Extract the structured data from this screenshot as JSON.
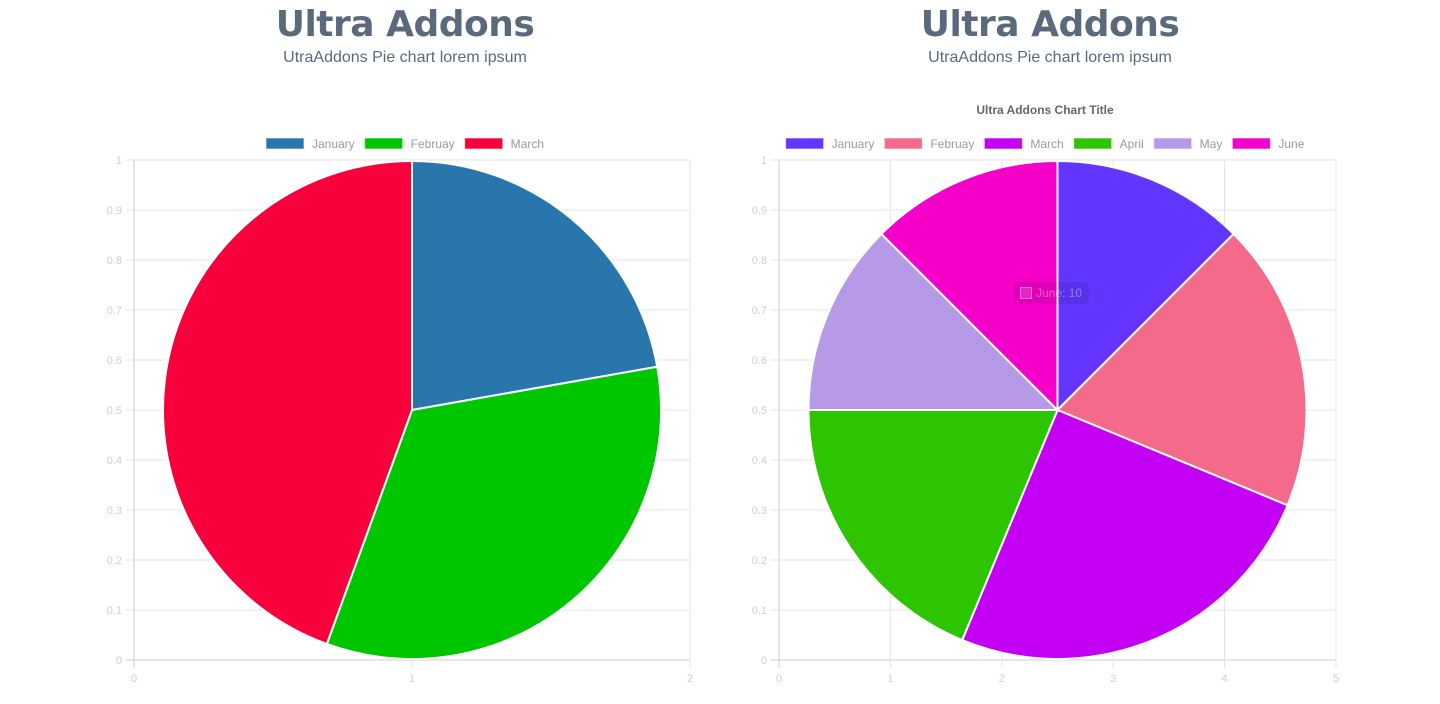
{
  "header_left": {
    "title": "Ultra Addons",
    "subtitle": "UtraAddons Pie chart lorem ipsum"
  },
  "header_right": {
    "title": "Ultra Addons",
    "subtitle": "UtraAddons Pie chart lorem ipsum"
  },
  "tooltip": {
    "label": "June: 10"
  },
  "chart_data": [
    {
      "type": "pie",
      "title": "",
      "categories": [
        "January",
        "Februay",
        "March"
      ],
      "values": [
        10,
        15,
        20
      ],
      "colors": [
        "#2876ab",
        "#00c600",
        "#f7003c"
      ],
      "legend_position": "top",
      "grid": true,
      "x_ticks": [
        "0",
        "1",
        "2"
      ],
      "y_ticks": [
        "0",
        "0.1",
        "0.2",
        "0.3",
        "0.4",
        "0.5",
        "0.6",
        "0.7",
        "0.8",
        "0.9",
        "1"
      ],
      "xlim": [
        0,
        2
      ],
      "ylim": [
        0,
        1
      ]
    },
    {
      "type": "pie",
      "title": "Ultra Addons Chart Title",
      "categories": [
        "January",
        "Februay",
        "March",
        "April",
        "May",
        "June"
      ],
      "values": [
        10,
        15,
        20,
        15,
        10,
        10
      ],
      "colors": [
        "#6236ff",
        "#f46a8a",
        "#c400f4",
        "#2cc500",
        "#b69ae8",
        "#f400c8"
      ],
      "legend_position": "top",
      "grid": true,
      "x_ticks": [
        "0",
        "1",
        "2",
        "3",
        "4",
        "5"
      ],
      "y_ticks": [
        "0",
        "0.1",
        "0.2",
        "0.3",
        "0.4",
        "0.5",
        "0.6",
        "0.7",
        "0.8",
        "0.9",
        "1"
      ],
      "xlim": [
        0,
        5
      ],
      "ylim": [
        0,
        1
      ],
      "tooltip": "June: 10"
    }
  ]
}
